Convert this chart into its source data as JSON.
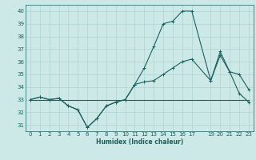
{
  "xlabel": "Humidex (Indice chaleur)",
  "xlim": [
    -0.5,
    23.5
  ],
  "ylim": [
    30.5,
    40.5
  ],
  "yticks": [
    31,
    32,
    33,
    34,
    35,
    36,
    37,
    38,
    39,
    40
  ],
  "xticks": [
    0,
    1,
    2,
    3,
    4,
    5,
    6,
    7,
    8,
    9,
    10,
    11,
    12,
    13,
    14,
    15,
    16,
    17,
    19,
    20,
    21,
    22,
    23
  ],
  "bg_color": "#cce9e7",
  "grid_color": "#afd4d2",
  "line_color": "#1a6060",
  "line1_x": [
    0,
    1,
    2,
    3,
    4,
    5,
    6,
    7,
    8,
    9,
    10,
    11,
    12,
    13,
    14,
    15,
    16,
    17,
    19,
    20,
    21,
    22,
    23
  ],
  "line1_y": [
    33.0,
    33.2,
    33.0,
    33.1,
    32.5,
    32.2,
    30.8,
    31.5,
    32.5,
    32.8,
    33.0,
    34.2,
    35.5,
    37.2,
    39.0,
    39.2,
    40.0,
    40.0,
    34.5,
    36.8,
    35.2,
    35.0,
    33.8
  ],
  "line2_x": [
    0,
    1,
    2,
    3,
    4,
    5,
    6,
    7,
    8,
    9,
    10,
    11,
    12,
    13,
    14,
    15,
    16,
    17,
    19,
    20,
    21,
    22,
    23
  ],
  "line2_y": [
    33.0,
    33.2,
    33.0,
    33.1,
    32.5,
    32.2,
    30.8,
    31.5,
    32.5,
    32.8,
    33.0,
    34.2,
    34.4,
    34.5,
    35.0,
    35.5,
    36.0,
    36.2,
    34.5,
    36.5,
    35.2,
    33.5,
    32.8
  ],
  "line3_x": [
    0,
    23
  ],
  "line3_y": [
    33.0,
    33.0
  ]
}
